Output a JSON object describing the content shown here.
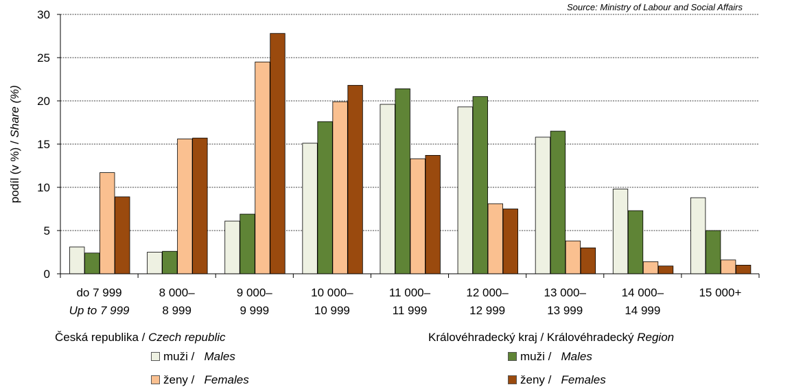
{
  "source": "Source: Ministry of Labour and Social Affairs",
  "chart_data": {
    "type": "bar",
    "ylabel_cz": "podíl  (v %) / ",
    "ylabel_en": "Share (%)",
    "ylim": [
      0,
      30
    ],
    "yticks": [
      0,
      5,
      10,
      15,
      20,
      25,
      30
    ],
    "grid": true,
    "categories": [
      {
        "line1": "do 7 999",
        "line2": "Up to 7 999",
        "line2_italic": true
      },
      {
        "line1": "8 000–",
        "line2": "8 999"
      },
      {
        "line1": "9 000–",
        "line2": "9 999"
      },
      {
        "line1": "10 000–",
        "line2": "10 999"
      },
      {
        "line1": "11 000–",
        "line2": "11 999"
      },
      {
        "line1": "12 000–",
        "line2": "12 999"
      },
      {
        "line1": "13 000–",
        "line2": "13 999"
      },
      {
        "line1": "14 000–",
        "line2": "14 999"
      },
      {
        "line1": "15 000+",
        "line2": ""
      }
    ],
    "series": [
      {
        "key": "cz_m",
        "color": "#eef1e2",
        "values": [
          3.1,
          2.5,
          6.1,
          15.1,
          19.6,
          19.3,
          15.8,
          9.8,
          8.8
        ]
      },
      {
        "key": "kh_m",
        "color": "#5f8436",
        "values": [
          2.4,
          2.6,
          6.9,
          17.6,
          21.4,
          20.5,
          16.5,
          7.3,
          5.0
        ]
      },
      {
        "key": "cz_f",
        "color": "#fac090",
        "values": [
          11.7,
          15.6,
          24.5,
          19.9,
          13.3,
          8.1,
          3.8,
          1.4,
          1.6
        ]
      },
      {
        "key": "kh_f",
        "color": "#9a4a0e",
        "values": [
          8.9,
          15.7,
          27.8,
          21.8,
          13.7,
          7.5,
          3.0,
          0.9,
          1.0
        ]
      }
    ]
  },
  "legend": {
    "cz_title_a": "Česká republika  /  ",
    "cz_title_b": "Czech republic",
    "kh_title_a": "Královéhradecký kraj  /  Královéhradecký ",
    "kh_title_b": "Region",
    "males_cz": "muži / ",
    "males_en": "Males",
    "females_cz": "ženy / ",
    "females_en": "Females"
  }
}
